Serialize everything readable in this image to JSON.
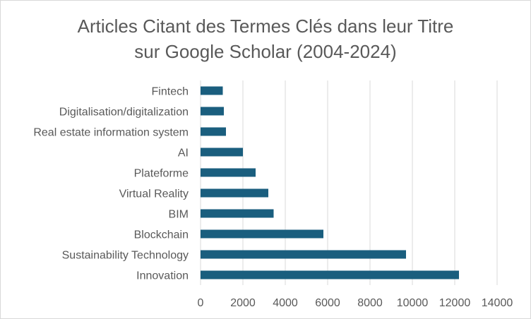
{
  "chart_data": {
    "type": "bar",
    "orientation": "horizontal",
    "title_lines": [
      "Articles Citant des Termes Clés dans leur Titre",
      "sur Google Scholar (2004-2024)"
    ],
    "categories": [
      "Fintech",
      "Digitalisation/digitalization",
      "Real estate information system",
      "AI",
      "Plateforme",
      "Virtual Reality",
      "BIM",
      "Blockchain",
      "Sustainability Technology",
      "Innovation"
    ],
    "values": [
      1050,
      1100,
      1200,
      2000,
      2600,
      3200,
      3450,
      5800,
      9700,
      12200
    ],
    "xlim": [
      0,
      14000
    ],
    "xticks": [
      "0",
      "2000",
      "4000",
      "6000",
      "8000",
      "10000",
      "12000",
      "14000"
    ],
    "xlabel": "",
    "ylabel": "",
    "grid": "vertical",
    "legend": "none",
    "bar_color": "#1a5e7e",
    "grid_color": "#d9d9d9"
  }
}
